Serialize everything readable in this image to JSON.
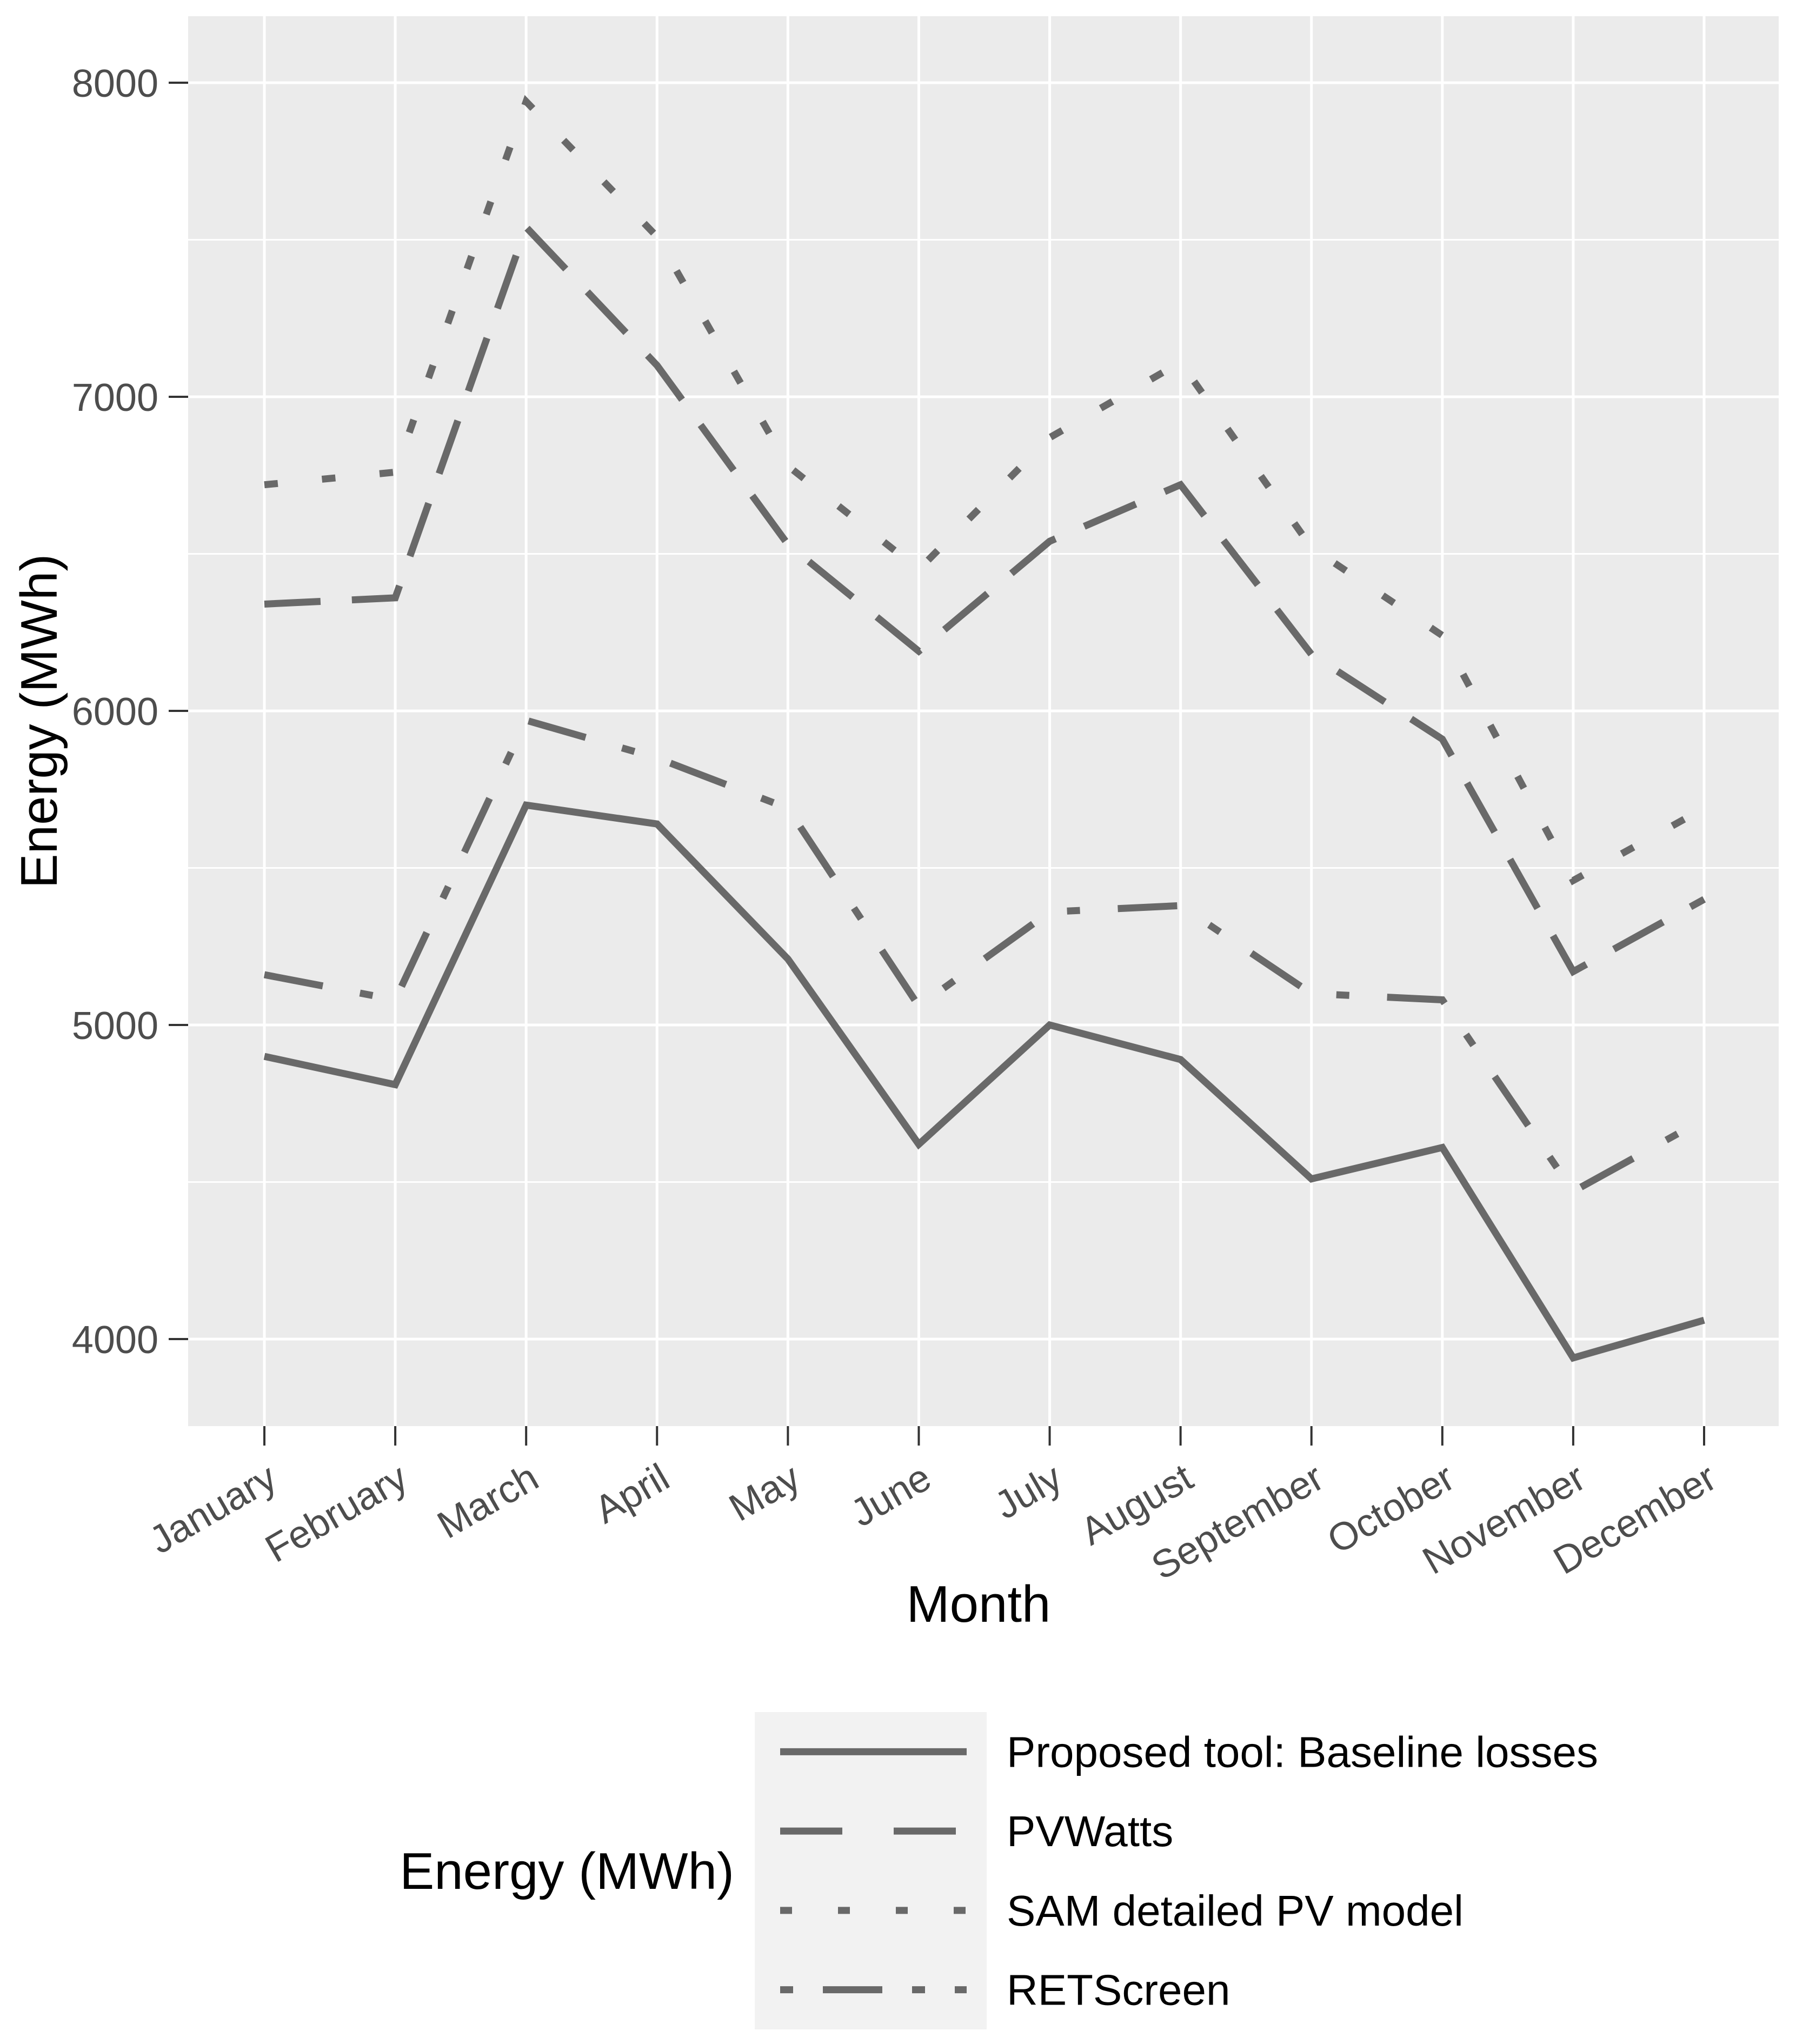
{
  "chart_data": {
    "type": "line",
    "title": "",
    "xlabel": "Month",
    "ylabel": "Energy (MWh)",
    "categories": [
      "January",
      "February",
      "March",
      "April",
      "May",
      "June",
      "July",
      "August",
      "September",
      "October",
      "November",
      "December"
    ],
    "series": [
      {
        "name": "Proposed tool: Baseline losses",
        "linestyle": "solid",
        "values": [
          4900,
          4810,
          5700,
          5640,
          5210,
          4620,
          5000,
          4890,
          4510,
          4610,
          3940,
          4060
        ]
      },
      {
        "name": "PVWatts",
        "linestyle": "longdash",
        "values": [
          6340,
          6360,
          7540,
          7100,
          6530,
          6190,
          6540,
          6720,
          6180,
          5910,
          5170,
          5400
        ]
      },
      {
        "name": "SAM detailed PV model",
        "linestyle": "dotted",
        "values": [
          6720,
          6760,
          7940,
          7510,
          6780,
          6450,
          6870,
          7110,
          6520,
          6240,
          5460,
          5690
        ]
      },
      {
        "name": "RETScreen",
        "linestyle": "dashdot",
        "values": [
          5160,
          5080,
          5970,
          5850,
          5690,
          5060,
          5360,
          5380,
          5100,
          5080,
          4470,
          4700
        ]
      }
    ],
    "y_ticks": [
      4000,
      5000,
      6000,
      7000,
      8000
    ],
    "y_minor_ticks": [
      4500,
      5500,
      6500,
      7500
    ],
    "ylim": [
      3723,
      8212
    ],
    "grid": "on",
    "legend": {
      "title": "Energy (MWh)",
      "position": "bottom"
    },
    "colors": {
      "line": "#696969",
      "panel_background": "#EBEBEB",
      "gridline": "#FFFFFF",
      "legend_key_background": "#F2F2F2",
      "axis_text": "#4D4D4D",
      "tick_mark": "#333333",
      "axis_title": "#000000",
      "page_background": "#FFFFFF"
    }
  }
}
